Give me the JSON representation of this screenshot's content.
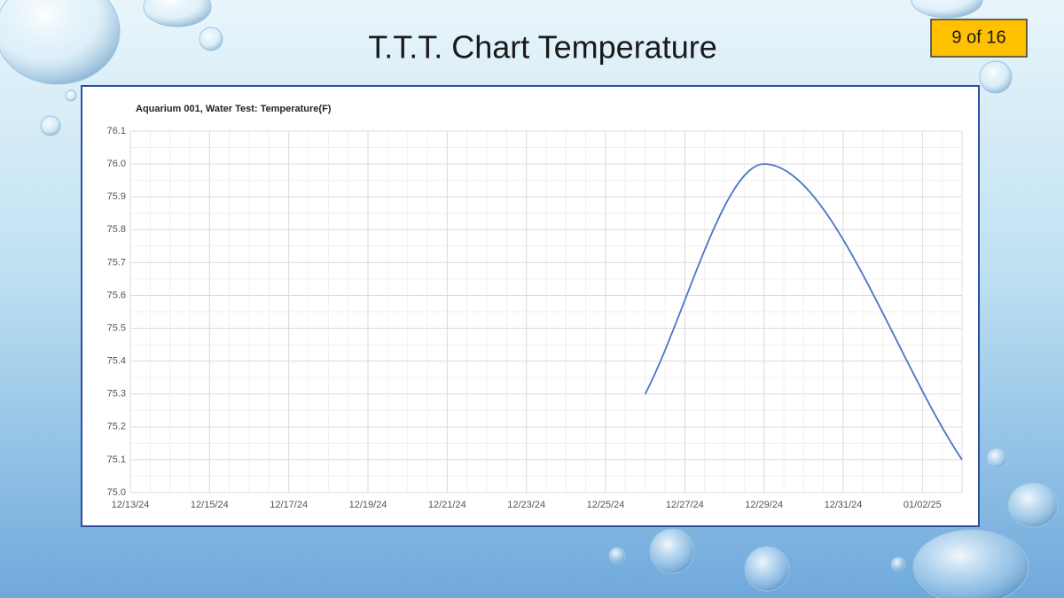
{
  "slide_title": "T.T.T. Chart Temperature",
  "page_badge": "9 of 16",
  "chart_data": {
    "type": "line",
    "title": "Aquarium 001, Water Test: Temperature(F)",
    "x": [
      "12/26/24",
      "12/29/24",
      "01/03/25"
    ],
    "values": [
      75.3,
      76.0,
      75.1
    ],
    "color": "#4a74c9",
    "smooth": true,
    "xlim": [
      "12/13/24",
      "01/03/25"
    ],
    "xticks": [
      "12/13/24",
      "12/15/24",
      "12/17/24",
      "12/19/24",
      "12/21/24",
      "12/23/24",
      "12/25/24",
      "12/27/24",
      "12/29/24",
      "12/31/24",
      "01/02/25"
    ],
    "ylim": [
      75,
      76.1
    ],
    "yticks": [
      {
        "value": 75,
        "label": "75.0"
      },
      75.1,
      75.2,
      75.3,
      75.4,
      75.5,
      75.6,
      75.7,
      75.8,
      75.9,
      {
        "value": 76,
        "label": "76.0"
      },
      76.1
    ],
    "grid": true
  }
}
